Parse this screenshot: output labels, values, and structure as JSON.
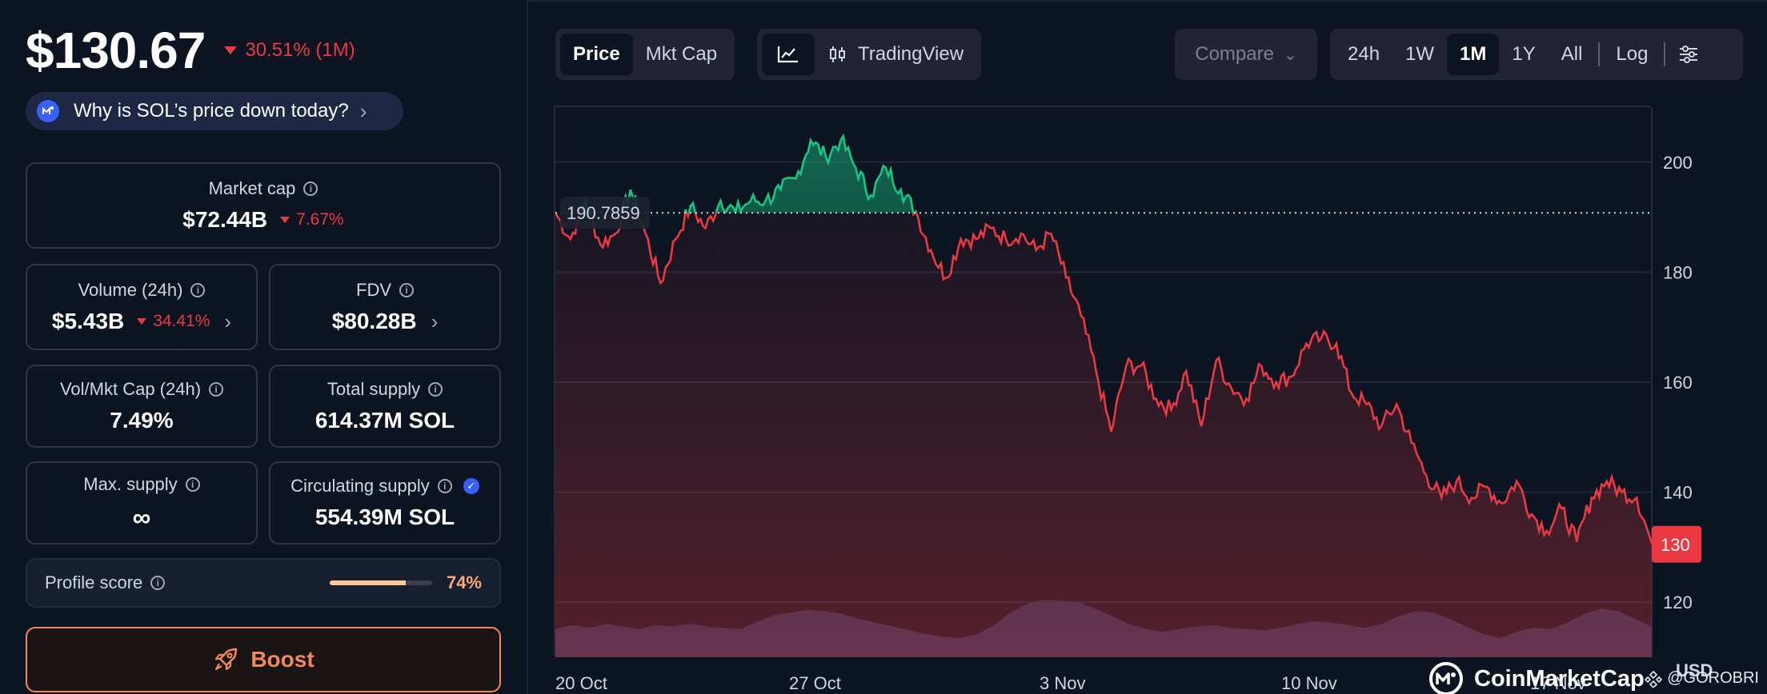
{
  "coin": {
    "price": "$130.67",
    "change": "30.51% (1M)",
    "why_text": "Why is SOL’s price down today?"
  },
  "stats": {
    "market_cap": {
      "label": "Market cap",
      "value": "$72.44B",
      "change": "7.67%"
    },
    "volume": {
      "label": "Volume (24h)",
      "value": "$5.43B",
      "change": "34.41%"
    },
    "fdv": {
      "label": "FDV",
      "value": "$80.28B"
    },
    "vol_mkt": {
      "label": "Vol/Mkt Cap (24h)",
      "value": "7.49%"
    },
    "total_supply": {
      "label": "Total supply",
      "value": "614.37M SOL"
    },
    "max_supply": {
      "label": "Max. supply",
      "value": "∞"
    },
    "circ_supply": {
      "label": "Circulating supply",
      "value": "554.39M SOL"
    }
  },
  "profile": {
    "label": "Profile score",
    "value": "74%",
    "fraction": 0.74
  },
  "boost_label": "Boost",
  "toolbar": {
    "price": "Price",
    "mkt_cap": "Mkt Cap",
    "tradingview": "TradingView",
    "compare": "Compare",
    "ranges": [
      "24h",
      "1W",
      "1M",
      "1Y",
      "All"
    ],
    "active_range": "1M",
    "log": "Log"
  },
  "colors": {
    "up": "#16c784",
    "down": "#ea3943",
    "accent": "#3861fb",
    "boost": "#ef8a5c"
  },
  "chart_data": {
    "type": "line",
    "x_ticks": [
      "20 Oct",
      "27 Oct",
      "3 Nov",
      "10 Nov",
      "17 Nov"
    ],
    "y_ticks": [
      "200",
      "180",
      "160",
      "140",
      "120"
    ],
    "ylim": [
      110,
      210
    ],
    "unit": "USD",
    "reference_value": "190.7859",
    "current_value": "130",
    "price_series": [
      190.8,
      186,
      193,
      185,
      187,
      195,
      187,
      178,
      186,
      192,
      188,
      193,
      191,
      193,
      193,
      195,
      197,
      204,
      201,
      204,
      199,
      194,
      199,
      195,
      191,
      184,
      179,
      186,
      186,
      188,
      186,
      187,
      184,
      187,
      179,
      172,
      162,
      151,
      163,
      163,
      157,
      155,
      162,
      152,
      164,
      159,
      157,
      163,
      160,
      161,
      167,
      168,
      167,
      158,
      156,
      152,
      156,
      149,
      143,
      139,
      142,
      139,
      141,
      138,
      142,
      136,
      133,
      137,
      131,
      139,
      142,
      140,
      139,
      130.67
    ],
    "volume_series": [
      22,
      25,
      23,
      26,
      24,
      22,
      25,
      24,
      26,
      24,
      23,
      22,
      28,
      33,
      35,
      37,
      36,
      34,
      30,
      27,
      24,
      21,
      18,
      16,
      15,
      18,
      25,
      35,
      42,
      45,
      44,
      43,
      38,
      32,
      26,
      22,
      20,
      22,
      24,
      25,
      23,
      22,
      21,
      23,
      26,
      28,
      27,
      25,
      23,
      26,
      32,
      36,
      35,
      30,
      24,
      18,
      15,
      20,
      23,
      22,
      27,
      34,
      38,
      36,
      30,
      24
    ]
  },
  "credit": "@GOROBRI",
  "watermark": "CoinMarketCap"
}
